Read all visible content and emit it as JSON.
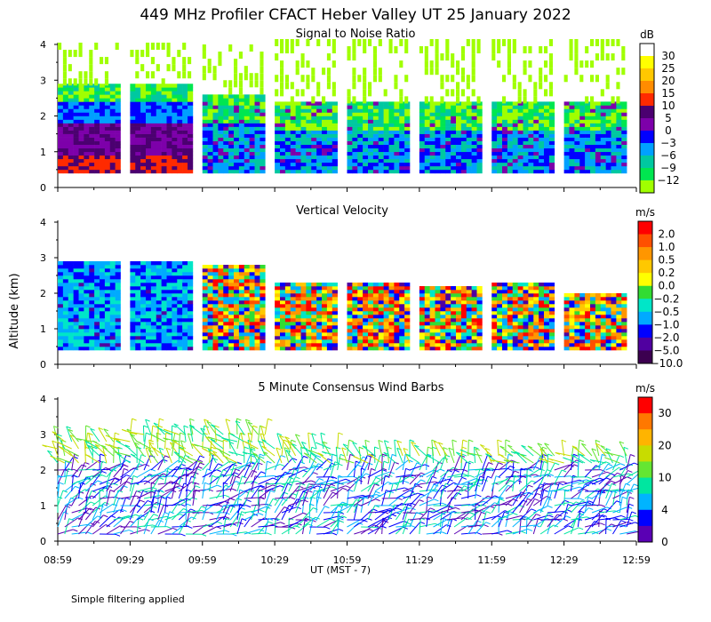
{
  "figure": {
    "title": "449 MHz Profiler CFACT Heber Valley UT 25 January 2022",
    "ylabel": "Altitude (km)",
    "xlabel": "UT  (MST - 7)",
    "note": "Simple filtering applied"
  },
  "chart_data": [
    {
      "type": "heatmap",
      "title": "Signal to Noise Ratio",
      "x_ticks": [
        "08:59",
        "09:29",
        "09:59",
        "10:29",
        "10:59",
        "11:29",
        "11:59",
        "12:29",
        "12:59"
      ],
      "ylim": [
        0,
        4
      ],
      "y_ticks": [
        0,
        1,
        2,
        3,
        4
      ],
      "colorbar": {
        "unit": "dB",
        "labels": [
          "30",
          "25",
          "20",
          "15",
          "10",
          "5",
          "0",
          "−3",
          "−6",
          "−9",
          "−12"
        ],
        "colors": [
          "#ffffff",
          "#ffff00",
          "#ffc800",
          "#ff8c00",
          "#ff2a00",
          "#4b0070",
          "#7d00aa",
          "#0000ff",
          "#00a0ff",
          "#00c8a0",
          "#00e650",
          "#a0ff00"
        ]
      },
      "segments": [
        {
          "start": "08:59",
          "end": "09:25",
          "top": 2.85,
          "pattern": "low"
        },
        {
          "start": "09:29",
          "end": "09:55",
          "top": 2.85,
          "pattern": "low"
        },
        {
          "start": "09:59",
          "end": "10:25",
          "top": 2.6,
          "pattern": "mid"
        },
        {
          "start": "10:29",
          "end": "10:55",
          "top": 2.35,
          "pattern": "mid"
        },
        {
          "start": "10:59",
          "end": "11:25",
          "top": 2.35,
          "pattern": "mid"
        },
        {
          "start": "11:29",
          "end": "11:55",
          "top": 2.35,
          "pattern": "mid"
        },
        {
          "start": "11:59",
          "end": "12:25",
          "top": 2.35,
          "pattern": "mid"
        },
        {
          "start": "12:29",
          "end": "12:55",
          "top": 2.35,
          "pattern": "mid"
        }
      ]
    },
    {
      "type": "heatmap",
      "title": "Vertical Velocity",
      "x_ticks": [
        "08:59",
        "09:29",
        "09:59",
        "10:29",
        "10:59",
        "11:29",
        "11:59",
        "12:29",
        "12:59"
      ],
      "ylim": [
        0,
        4
      ],
      "y_ticks": [
        0,
        1,
        2,
        3,
        4
      ],
      "colorbar": {
        "unit": "m/s",
        "labels": [
          "2.0",
          "1.0",
          "0.5",
          "0.2",
          "0.0",
          "−0.2",
          "−0.5",
          "−1.0",
          "−2.0",
          "−5.0",
          "−10.0"
        ],
        "colors": [
          "#ff0000",
          "#ff5000",
          "#ff9600",
          "#ffc800",
          "#ffff00",
          "#32dc32",
          "#00e6c8",
          "#00aaff",
          "#0000ff",
          "#5000a0",
          "#3c0050"
        ]
      },
      "segments": [
        {
          "start": "08:59",
          "end": "09:25",
          "top": 2.85,
          "pattern": "down"
        },
        {
          "start": "09:29",
          "end": "09:55",
          "top": 2.85,
          "pattern": "down"
        },
        {
          "start": "09:59",
          "end": "10:25",
          "top": 2.8,
          "pattern": "mixed"
        },
        {
          "start": "10:29",
          "end": "10:55",
          "top": 2.3,
          "pattern": "mixed"
        },
        {
          "start": "10:59",
          "end": "11:25",
          "top": 2.3,
          "pattern": "mixed"
        },
        {
          "start": "11:29",
          "end": "11:55",
          "top": 2.2,
          "pattern": "mixed"
        },
        {
          "start": "11:59",
          "end": "12:25",
          "top": 2.3,
          "pattern": "mixed"
        },
        {
          "start": "12:29",
          "end": "12:55",
          "top": 1.95,
          "pattern": "mixed"
        }
      ]
    },
    {
      "type": "scatter",
      "title": "5 Minute Consensus Wind Barbs",
      "x_ticks": [
        "08:59",
        "09:29",
        "09:59",
        "10:29",
        "10:59",
        "11:29",
        "11:59",
        "12:29",
        "12:59"
      ],
      "ylim": [
        0,
        4
      ],
      "y_ticks": [
        0,
        1,
        2,
        3,
        4
      ],
      "colorbar": {
        "unit": "m/s",
        "labels": [
          "30",
          "20",
          "10",
          "4",
          "0"
        ],
        "colors": [
          "#ff0000",
          "#ff7800",
          "#ffb400",
          "#c8dc00",
          "#64e632",
          "#00e6a0",
          "#00b4ff",
          "#0000ff",
          "#5a00b4"
        ]
      },
      "barb_top_km": [
        3.0,
        3.1,
        3.1,
        2.8,
        2.6,
        2.6,
        2.6,
        2.6,
        2.5
      ]
    }
  ]
}
